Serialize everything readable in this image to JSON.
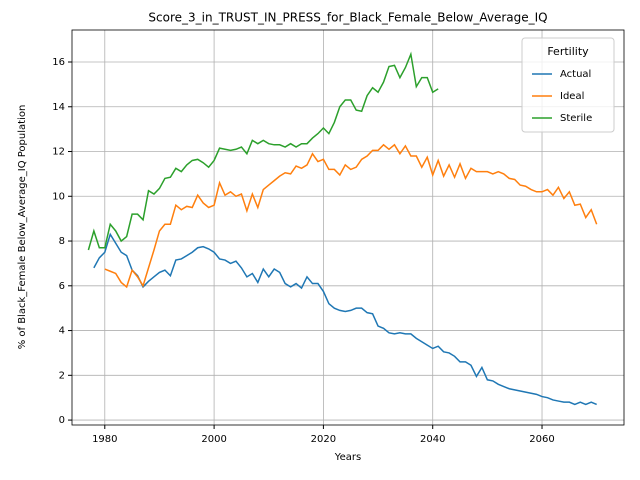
{
  "chart_data": {
    "type": "line",
    "title": "Score_3_in_TRUST_IN_PRESS_for_Black_Female_Below_Average_IQ",
    "xlabel": "Years",
    "ylabel": "% of Black_Female Below_Average_IQ Population",
    "legend_title": "Fertility",
    "legend_loc": "upper right",
    "grid": true,
    "xlim": [
      1974,
      2075
    ],
    "ylim": [
      -0.22,
      17.43
    ],
    "xticks": [
      1980,
      2000,
      2020,
      2040,
      2060
    ],
    "yticks": [
      0,
      2,
      4,
      6,
      8,
      10,
      12,
      14,
      16
    ],
    "x": [
      1977,
      1978,
      1979,
      1980,
      1981,
      1982,
      1983,
      1984,
      1985,
      1986,
      1987,
      1988,
      1989,
      1990,
      1991,
      1992,
      1993,
      1994,
      1995,
      1996,
      1997,
      1998,
      1999,
      2000,
      2001,
      2002,
      2003,
      2004,
      2005,
      2006,
      2007,
      2008,
      2009,
      2010,
      2011,
      2012,
      2013,
      2014,
      2015,
      2016,
      2017,
      2018,
      2019,
      2020,
      2021,
      2022,
      2023,
      2024,
      2025,
      2026,
      2027,
      2028,
      2029,
      2030,
      2031,
      2032,
      2033,
      2034,
      2035,
      2036,
      2037,
      2038,
      2039,
      2040,
      2041,
      2042,
      2043,
      2044,
      2045,
      2046,
      2047,
      2048,
      2049,
      2050,
      2051,
      2052,
      2053,
      2054,
      2055,
      2056,
      2057,
      2058,
      2059,
      2060,
      2061,
      2062,
      2063,
      2064,
      2065,
      2066,
      2067,
      2068,
      2069,
      2070
    ],
    "series": [
      {
        "name": "Actual",
        "color": "#1f77b4",
        "values": [
          null,
          6.8,
          7.25,
          7.5,
          8.3,
          7.9,
          7.5,
          7.35,
          6.7,
          6.45,
          5.95,
          6.2,
          6.4,
          6.6,
          6.7,
          6.45,
          7.15,
          7.2,
          7.35,
          7.5,
          7.7,
          7.75,
          7.65,
          7.5,
          7.2,
          7.15,
          7.0,
          7.1,
          6.8,
          6.4,
          6.55,
          6.15,
          6.75,
          6.4,
          6.75,
          6.6,
          6.1,
          5.95,
          6.1,
          5.9,
          6.4,
          6.1,
          6.1,
          5.75,
          5.2,
          5.0,
          4.9,
          4.85,
          4.9,
          5.0,
          5.0,
          4.8,
          4.75,
          4.2,
          4.1,
          3.9,
          3.85,
          3.9,
          3.85,
          3.85,
          3.65,
          3.5,
          3.35,
          3.2,
          3.3,
          3.05,
          3.0,
          2.85,
          2.6,
          2.6,
          2.45,
          1.95,
          2.35,
          1.8,
          1.75,
          1.6,
          1.5,
          1.4,
          1.35,
          1.3,
          1.25,
          1.2,
          1.15,
          1.05,
          1.0,
          0.9,
          0.85,
          0.8,
          0.8,
          0.7,
          0.8,
          0.7,
          0.8,
          0.7
        ]
      },
      {
        "name": "Ideal",
        "color": "#ff7f0e",
        "values": [
          null,
          null,
          null,
          6.75,
          6.65,
          6.55,
          6.15,
          5.95,
          6.7,
          6.4,
          6.0,
          6.8,
          7.6,
          8.45,
          8.75,
          8.75,
          9.6,
          9.4,
          9.55,
          9.5,
          10.05,
          9.7,
          9.5,
          9.6,
          10.6,
          10.05,
          10.2,
          10.0,
          10.1,
          9.35,
          10.1,
          9.5,
          10.3,
          10.5,
          10.7,
          10.9,
          11.05,
          11.0,
          11.35,
          11.25,
          11.4,
          11.9,
          11.55,
          11.65,
          11.2,
          11.2,
          10.95,
          11.4,
          11.2,
          11.3,
          11.65,
          11.8,
          12.05,
          12.05,
          12.3,
          12.1,
          12.3,
          11.9,
          12.25,
          11.8,
          11.8,
          11.3,
          11.75,
          10.95,
          11.6,
          10.9,
          11.4,
          10.85,
          11.45,
          10.8,
          11.25,
          11.1,
          11.1,
          11.1,
          11.0,
          11.1,
          11.0,
          10.8,
          10.75,
          10.5,
          10.45,
          10.3,
          10.2,
          10.2,
          10.3,
          10.05,
          10.4,
          9.9,
          10.2,
          9.6,
          9.65,
          9.05,
          9.4,
          8.75
        ]
      },
      {
        "name": "Sterile",
        "color": "#2ca02c",
        "values": [
          7.6,
          8.45,
          7.7,
          7.7,
          8.75,
          8.45,
          8.0,
          8.2,
          9.2,
          9.2,
          8.95,
          10.25,
          10.1,
          10.35,
          10.8,
          10.85,
          11.25,
          11.1,
          11.4,
          11.6,
          11.65,
          11.5,
          11.3,
          11.6,
          12.15,
          12.1,
          12.05,
          12.1,
          12.2,
          11.9,
          12.5,
          12.35,
          12.5,
          12.35,
          12.3,
          12.3,
          12.2,
          12.35,
          12.2,
          12.35,
          12.35,
          12.6,
          12.8,
          13.05,
          12.8,
          13.3,
          14.0,
          14.3,
          14.3,
          13.85,
          13.8,
          14.5,
          14.85,
          14.65,
          15.1,
          15.8,
          15.85,
          15.3,
          15.75,
          16.35,
          14.9,
          15.3,
          15.3,
          14.65,
          14.8,
          null,
          null,
          null,
          null,
          null,
          null,
          null,
          null,
          null,
          null,
          null,
          null,
          null,
          null,
          null,
          null,
          null,
          null,
          null,
          null,
          null,
          null,
          null,
          null,
          null,
          null,
          null,
          null,
          null
        ]
      }
    ]
  }
}
